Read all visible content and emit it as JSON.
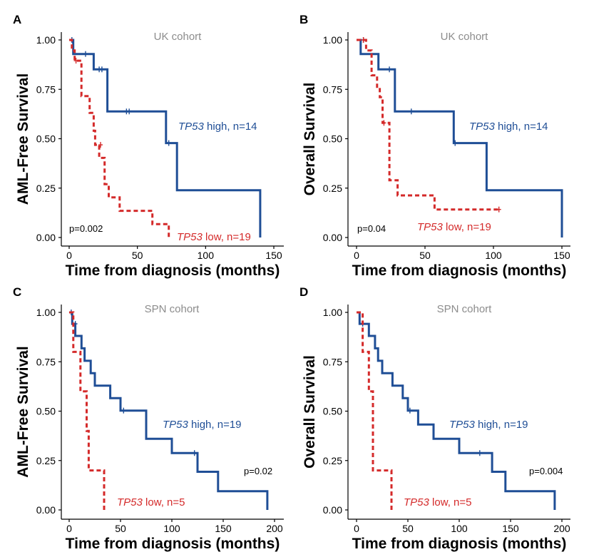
{
  "chart_data": [
    {
      "type": "line",
      "panel": "A",
      "title": "UK cohort",
      "xlabel": "Time from diagnosis (months)",
      "ylabel": "AML-Free Survival",
      "xlim": [
        0,
        150
      ],
      "ylim": [
        0,
        1
      ],
      "xticks": [
        "0",
        "50",
        "100",
        "150"
      ],
      "yticks": [
        "0.00",
        "0.25",
        "0.50",
        "0.75",
        "1.00"
      ],
      "pvalue": "p=0.002",
      "series": [
        {
          "name": "high",
          "label_italic": "TP53",
          "label_rest": " high, n=14",
          "x": [
            0,
            3,
            3,
            18,
            18,
            28,
            28,
            71,
            71,
            79,
            79,
            140,
            140
          ],
          "y": [
            1.0,
            1.0,
            0.929,
            0.929,
            0.851,
            0.851,
            0.638,
            0.638,
            0.478,
            0.478,
            0.239,
            0.239,
            0.0
          ],
          "censor_x": [
            2,
            12,
            22,
            24,
            42,
            44,
            73
          ],
          "censor_y": [
            1.0,
            0.929,
            0.851,
            0.851,
            0.638,
            0.638,
            0.478
          ]
        },
        {
          "name": "low",
          "label_italic": "TP53",
          "label_rest": " low, n=19",
          "x": [
            0,
            2,
            2,
            4,
            4,
            9,
            9,
            15,
            15,
            18,
            18,
            19,
            19,
            22,
            22,
            26,
            26,
            29,
            29,
            37,
            37,
            61,
            61,
            73,
            73
          ],
          "y": [
            1.0,
            1.0,
            0.947,
            0.947,
            0.895,
            0.895,
            0.716,
            0.716,
            0.631,
            0.631,
            0.54,
            0.54,
            0.469,
            0.469,
            0.403,
            0.403,
            0.27,
            0.27,
            0.203,
            0.203,
            0.135,
            0.135,
            0.068,
            0.068,
            0.0
          ],
          "censor_x": [
            5,
            23
          ],
          "censor_y": [
            0.895,
            0.469
          ]
        }
      ]
    },
    {
      "type": "line",
      "panel": "B",
      "title": "UK cohort",
      "xlabel": "Time from diagnosis (months)",
      "ylabel": "Overall Survival",
      "xlim": [
        0,
        150
      ],
      "ylim": [
        0,
        1
      ],
      "xticks": [
        "0",
        "50",
        "100",
        "150"
      ],
      "yticks": [
        "0.00",
        "0.25",
        "0.50",
        "0.75",
        "1.00"
      ],
      "pvalue": "p=0.04",
      "series": [
        {
          "name": "high",
          "label_italic": "TP53",
          "label_rest": " high, n=14",
          "x": [
            0,
            3,
            3,
            16,
            16,
            24,
            24,
            28,
            28,
            71,
            71,
            95,
            95,
            150,
            150
          ],
          "y": [
            1.0,
            1.0,
            0.929,
            0.929,
            0.851,
            0.851,
            0.851,
            0.851,
            0.638,
            0.638,
            0.478,
            0.478,
            0.239,
            0.239,
            0.0
          ],
          "censor_x": [
            5,
            24,
            40,
            72
          ],
          "censor_y": [
            1.0,
            0.851,
            0.638,
            0.478
          ]
        },
        {
          "name": "low",
          "label_italic": "TP53",
          "label_rest": " low, n=19",
          "x": [
            0,
            7,
            7,
            11,
            11,
            15,
            15,
            17,
            17,
            19,
            19,
            21,
            21,
            24,
            24,
            26,
            26,
            30,
            30,
            57,
            57,
            104
          ],
          "y": [
            1.0,
            1.0,
            0.947,
            0.947,
            0.821,
            0.821,
            0.757,
            0.757,
            0.71,
            0.71,
            0.58,
            0.58,
            0.58,
            0.58,
            0.29,
            0.29,
            0.29,
            0.29,
            0.213,
            0.213,
            0.142,
            0.142
          ],
          "censor_x": [
            5,
            20,
            104
          ],
          "censor_y": [
            1.0,
            0.58,
            0.142
          ]
        }
      ]
    },
    {
      "type": "line",
      "panel": "C",
      "title": "SPN cohort",
      "xlabel": "Time from diagnosis (months)",
      "ylabel": "AML-Free Survival",
      "xlim": [
        0,
        200
      ],
      "ylim": [
        0,
        1
      ],
      "xticks": [
        "0",
        "50",
        "100",
        "150",
        "200"
      ],
      "yticks": [
        "0.00",
        "0.25",
        "0.50",
        "0.75",
        "1.00"
      ],
      "pvalue": "p=0.02",
      "series": [
        {
          "name": "high",
          "label_italic": "TP53",
          "label_rest": " high, n=19",
          "x": [
            0,
            3,
            3,
            6,
            6,
            12,
            12,
            15,
            15,
            21,
            21,
            25,
            25,
            40,
            40,
            50,
            50,
            75,
            75,
            100,
            100,
            125,
            125,
            145,
            145,
            193,
            193
          ],
          "y": [
            1.0,
            1.0,
            0.942,
            0.942,
            0.881,
            0.881,
            0.818,
            0.818,
            0.755,
            0.755,
            0.692,
            0.692,
            0.629,
            0.629,
            0.566,
            0.566,
            0.503,
            0.503,
            0.36,
            0.36,
            0.288,
            0.288,
            0.193,
            0.193,
            0.095,
            0.095,
            0.0
          ],
          "censor_x": [
            2,
            6,
            53,
            122
          ],
          "censor_y": [
            1.0,
            0.942,
            0.503,
            0.288
          ]
        },
        {
          "name": "low",
          "label_italic": "TP53",
          "label_rest": " low, n=5",
          "x": [
            0,
            4,
            4,
            11,
            11,
            17,
            17,
            19,
            19,
            34,
            34
          ],
          "y": [
            1.0,
            1.0,
            0.8,
            0.8,
            0.6,
            0.6,
            0.4,
            0.4,
            0.2,
            0.2,
            0.0
          ],
          "censor_x": [],
          "censor_y": []
        }
      ]
    },
    {
      "type": "line",
      "panel": "D",
      "title": "SPN cohort",
      "xlabel": "Time from diagnosis (months)",
      "ylabel": "Overall Survival",
      "xlim": [
        0,
        200
      ],
      "ylim": [
        0,
        1
      ],
      "xticks": [
        "0",
        "50",
        "100",
        "150",
        "200"
      ],
      "yticks": [
        "0.00",
        "0.25",
        "0.50",
        "0.75",
        "1.00"
      ],
      "pvalue": "p=0.004",
      "series": [
        {
          "name": "high",
          "label_italic": "TP53",
          "label_rest": " high, n=19",
          "x": [
            0,
            3,
            3,
            12,
            12,
            18,
            18,
            21,
            21,
            25,
            25,
            35,
            35,
            45,
            45,
            50,
            50,
            60,
            60,
            75,
            75,
            100,
            100,
            132,
            132,
            145,
            145,
            193,
            193
          ],
          "y": [
            1.0,
            1.0,
            0.942,
            0.942,
            0.881,
            0.881,
            0.818,
            0.818,
            0.755,
            0.755,
            0.692,
            0.692,
            0.629,
            0.629,
            0.566,
            0.566,
            0.503,
            0.503,
            0.432,
            0.432,
            0.36,
            0.36,
            0.288,
            0.288,
            0.193,
            0.193,
            0.095,
            0.095,
            0.0
          ],
          "censor_x": [
            6,
            52,
            120
          ],
          "censor_y": [
            0.942,
            0.503,
            0.288
          ]
        },
        {
          "name": "low",
          "label_italic": "TP53",
          "label_rest": " low, n=5",
          "x": [
            0,
            6,
            6,
            12,
            12,
            16,
            16,
            19,
            19,
            34,
            34
          ],
          "y": [
            1.0,
            1.0,
            0.8,
            0.8,
            0.6,
            0.6,
            0.2,
            0.2,
            0.2,
            0.2,
            0.0
          ],
          "censor_x": [],
          "censor_y": []
        }
      ]
    }
  ]
}
